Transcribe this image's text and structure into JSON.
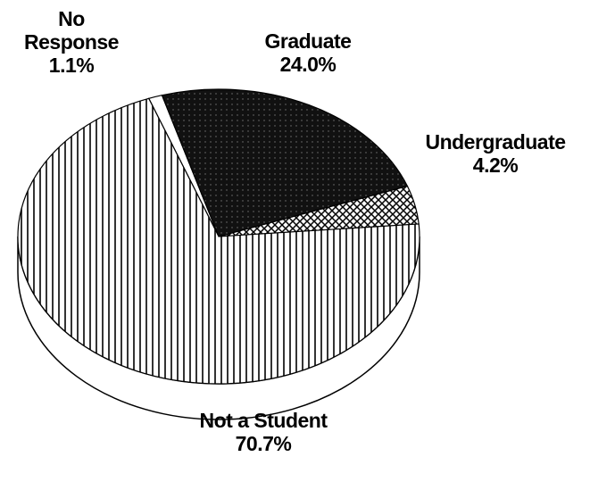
{
  "chart_data": {
    "type": "pie",
    "categories": [
      "No Response",
      "Graduate",
      "Undergraduate",
      "Not a Student"
    ],
    "values": [
      1.1,
      24.0,
      4.2,
      70.7
    ],
    "value_labels": [
      "1.1%",
      "24.0%",
      "4.2%",
      "70.7%"
    ]
  }
}
